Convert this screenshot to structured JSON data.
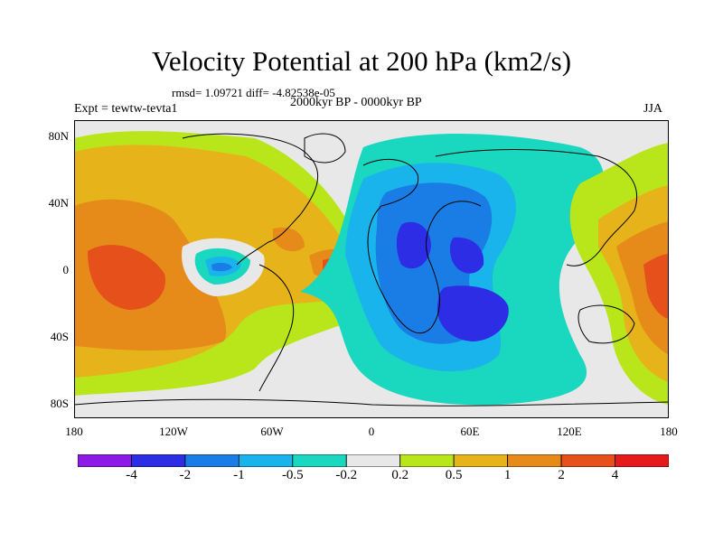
{
  "title": "Velocity Potential at 200 hPa (km2/s)",
  "subtitle": "rmsd= 1.09721 diff= -4.82538e-05",
  "left_label": "Expt = tewtw-tevta1",
  "center_label": "2000kyr BP - 0000kyr BP",
  "right_label": "JJA",
  "yaxis_ticks": [
    "80N",
    "40N",
    "0",
    "40S",
    "80S"
  ],
  "xaxis_ticks": [
    "180",
    "120W",
    "60W",
    "0",
    "60E",
    "120E",
    "180"
  ],
  "colorbar": {
    "labels": [
      "-4",
      "-2",
      "-1",
      "-0.5",
      "-0.2",
      "0.2",
      "0.5",
      "1",
      "2",
      "4"
    ],
    "colors": [
      "#8c19e6",
      "#2d2de6",
      "#1a7de6",
      "#1ab4ec",
      "#1ad7bf",
      "#e8e8e8",
      "#b8e61a",
      "#e6b41a",
      "#e68a1a",
      "#e6501a",
      "#e61a1a"
    ]
  },
  "palette": {
    "land_gray": "#e8e8e8",
    "coast": "#000000"
  }
}
